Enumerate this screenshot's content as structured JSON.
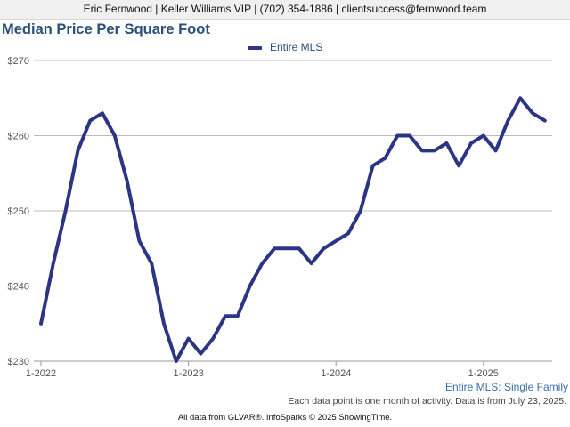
{
  "header": {
    "contact": "Eric Fernwood | Keller Williams VIP | (702) 354-1886 | clientsuccess@fernwood.team"
  },
  "chart_data": {
    "type": "line",
    "title": "Median Price Per Square Foot",
    "xlabel": "",
    "ylabel": "",
    "x": [
      "2022-01",
      "2022-02",
      "2022-03",
      "2022-04",
      "2022-05",
      "2022-06",
      "2022-07",
      "2022-08",
      "2022-09",
      "2022-10",
      "2022-11",
      "2022-12",
      "2023-01",
      "2023-02",
      "2023-03",
      "2023-04",
      "2023-05",
      "2023-06",
      "2023-07",
      "2023-08",
      "2023-09",
      "2023-10",
      "2023-11",
      "2023-12",
      "2024-01",
      "2024-02",
      "2024-03",
      "2024-04",
      "2024-05",
      "2024-06",
      "2024-07",
      "2024-08",
      "2024-09",
      "2024-10",
      "2024-11",
      "2024-12",
      "2025-01",
      "2025-02",
      "2025-03",
      "2025-04",
      "2025-05",
      "2025-06"
    ],
    "series": [
      {
        "name": "Entire MLS",
        "color": "#2b3584",
        "values": [
          235,
          243,
          250,
          258,
          262,
          263,
          260,
          254,
          246,
          243,
          235,
          230,
          233,
          231,
          233,
          236,
          236,
          240,
          243,
          245,
          245,
          245,
          243,
          245,
          246,
          247,
          250,
          256,
          257,
          260,
          260,
          258,
          258,
          259,
          256,
          259,
          260,
          258,
          262,
          265,
          263,
          262
        ]
      }
    ],
    "ylim": [
      230,
      270
    ],
    "yticks": [
      230,
      240,
      250,
      260,
      270
    ],
    "ytick_labels": [
      "$230",
      "$240",
      "$250",
      "$260",
      "$270"
    ],
    "xticks": [
      {
        "x": "2022-01",
        "label": "1-2022"
      },
      {
        "x": "2023-01",
        "label": "1-2023"
      },
      {
        "x": "2024-01",
        "label": "1-2024"
      },
      {
        "x": "2025-01",
        "label": "1-2025"
      }
    ],
    "grid": true,
    "legend": "top-center"
  },
  "notes": {
    "series_label": "Entire MLS: Single Family",
    "activity": "Each data point is one month of activity. Data is from July 23, 2025.",
    "source": "All data from GLVAR®. InfoSparks © 2025 ShowingTime."
  }
}
